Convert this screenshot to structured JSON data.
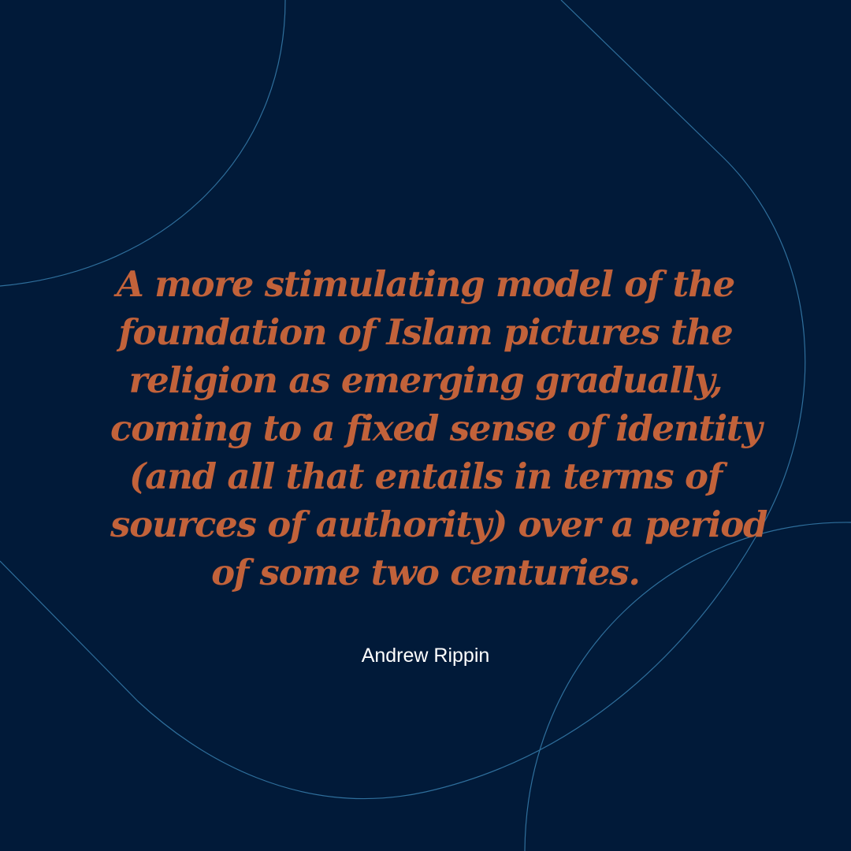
{
  "colors": {
    "background": "#011a39",
    "quote_text": "#c2623a",
    "author_text": "#ffffff",
    "decor_line": "#2f6f9c"
  },
  "quote": {
    "lines": [
      "A more stimulating model of the",
      "foundation of Islam pictures the",
      "religion as emerging gradually,",
      "coming to a fixed sense of identity",
      "(and all that entails in terms of",
      "sources of authority) over a period",
      "of some two centuries."
    ]
  },
  "author": "Andrew Rippin"
}
